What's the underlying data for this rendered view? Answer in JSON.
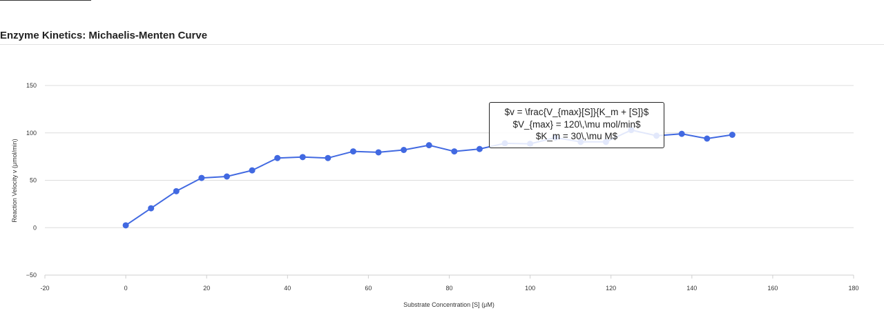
{
  "chart_data": {
    "type": "line",
    "title": "Enzyme Kinetics: Michaelis-Menten Curve",
    "xlabel": "Substrate Concentration [S] (μM)",
    "ylabel": "Reaction Velocity v (μmol/min)",
    "xlim": [
      -20,
      180
    ],
    "ylim": [
      -50,
      150
    ],
    "xticks": [
      -20,
      0,
      20,
      40,
      60,
      80,
      100,
      120,
      140,
      160,
      180
    ],
    "yticks": [
      -50,
      0,
      50,
      100,
      150
    ],
    "grid": "horizontal",
    "legend": "none",
    "series": [
      {
        "color": "#4169e1",
        "x": [
          0,
          6.25,
          12.5,
          18.75,
          25,
          31.25,
          37.5,
          43.75,
          50,
          56.25,
          62.5,
          68.75,
          75,
          81.25,
          87.5,
          93.75,
          100,
          106.25,
          112.5,
          118.75,
          125,
          131.25,
          137.5,
          143.75,
          150
        ],
        "y": [
          2.5,
          20.5,
          38.5,
          52.5,
          54,
          60.5,
          73.5,
          74.5,
          73.5,
          80.5,
          79.5,
          82,
          87,
          80.5,
          83,
          89,
          88.5,
          95,
          90.5,
          90.5,
          103,
          97,
          99,
          94,
          98
        ]
      }
    ],
    "annotation": {
      "lines": [
        "$v = \\frac{V_{max}[S]}{K_m + [S]}$",
        "$V_{max} = 120\\,\\mu mol/min$",
        "$K_m = 30\\,\\mu M$"
      ]
    }
  }
}
